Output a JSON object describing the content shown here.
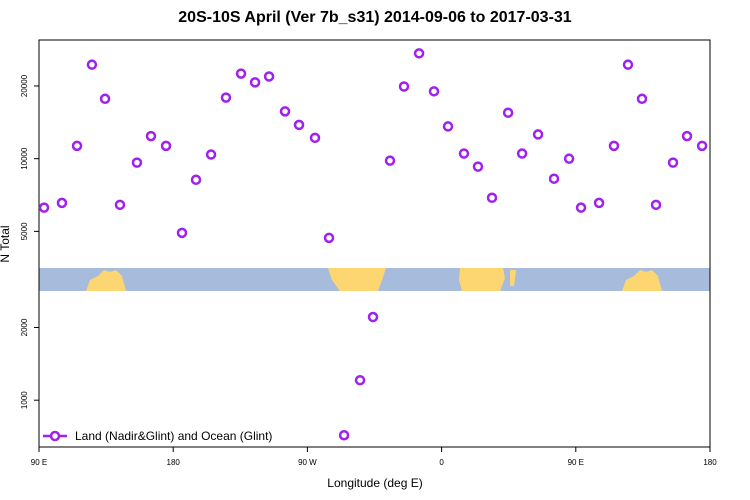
{
  "chart_data": {
    "type": "scatter",
    "title": "20S-10S April (Ver 7b_s31)   2014-09-06 to 2017-03-31",
    "xlabel": "Longitude (deg E)",
    "ylabel": "N Total",
    "xlim": [
      90,
      540
    ],
    "xticks": [
      {
        "value": 90,
        "label": "90 E"
      },
      180,
      {
        "value": 270,
        "label": "90 W"
      },
      {
        "value": 360,
        "label": "0"
      },
      {
        "value": 450,
        "label": "90 E"
      },
      {
        "value": 540,
        "label": "180"
      }
    ],
    "ylim": [
      640,
      31000
    ],
    "yscale": "log",
    "yticks": [
      1000,
      2000,
      5000,
      10000,
      20000
    ],
    "legend_position": "lower left",
    "series": [
      {
        "name": "Land (Nadir&Glint) and Ocean (Glint)",
        "color": "#a020f0",
        "x": [
          93.4,
          105.4,
          115.5,
          125.5,
          134.3,
          144.3,
          155.7,
          165.1,
          175.2,
          185.9,
          195.3,
          205.4,
          215.4,
          225.5,
          234.9,
          244.3,
          255.0,
          264.4,
          275.1,
          284.5,
          294.6,
          305.3,
          314.0,
          325.4,
          334.8,
          344.9,
          354.9,
          364.3,
          375.0,
          384.4,
          393.8,
          404.6,
          414.0,
          424.7,
          435.4,
          445.5,
          453.5,
          465.6,
          475.6,
          485.0,
          494.4,
          503.8,
          515.2,
          524.6,
          534.7
        ],
        "values": [
          6270,
          6560,
          11300,
          24500,
          17700,
          6440,
          9630,
          12400,
          11300,
          4930,
          8180,
          10400,
          17900,
          22500,
          20700,
          21900,
          15700,
          13800,
          12200,
          4700,
          716,
          1210,
          2210,
          9810,
          19900,
          27300,
          19000,
          13600,
          10500,
          9270,
          6890,
          15500,
          10500,
          12600,
          8260,
          10000,
          6270,
          6560,
          11300,
          24500,
          17700,
          6440,
          9630,
          12400,
          11300
        ]
      }
    ]
  }
}
